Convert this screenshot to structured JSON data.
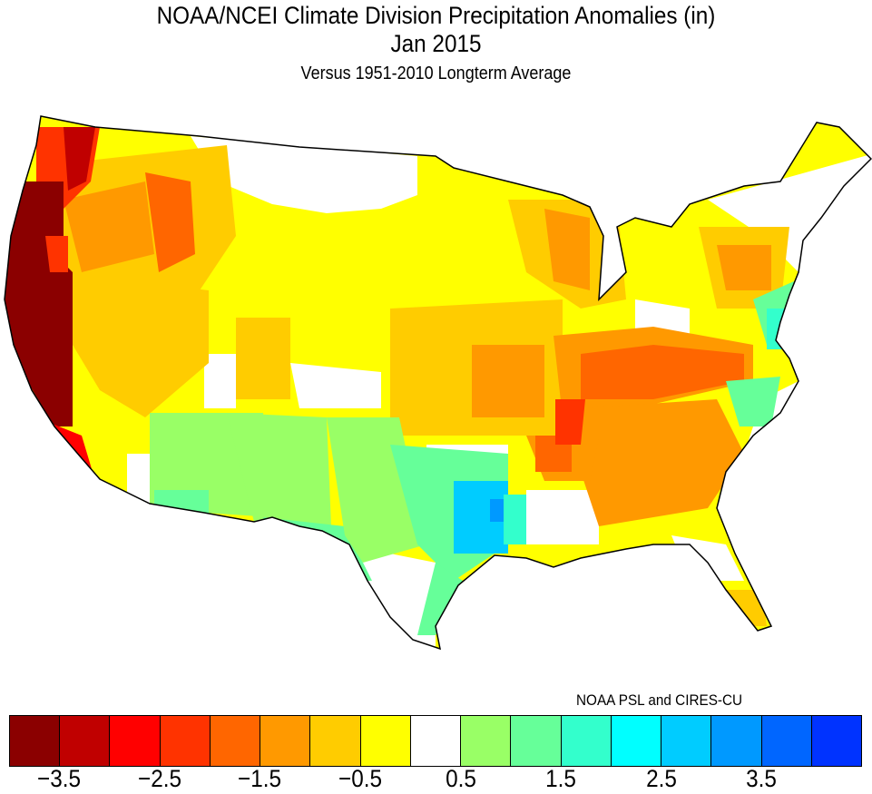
{
  "title": "NOAA/NCEI Climate Division Precipitation Anomalies (in)",
  "period": "Jan 2015",
  "subtitle": "Versus 1951-2010 Longterm Average",
  "credit": "NOAA PSL and CIRES-CU",
  "legend": {
    "colors": [
      "#8b0000",
      "#c00000",
      "#ff0000",
      "#ff3300",
      "#ff6600",
      "#ff9900",
      "#ffcc00",
      "#ffff00",
      "#ffffff",
      "#99ff66",
      "#66ff99",
      "#33ffcc",
      "#00ffff",
      "#00ccff",
      "#0099ff",
      "#0066ff",
      "#0033ff"
    ],
    "tick_labels": [
      "−3.5",
      "−2.5",
      "−1.5",
      "−0.5",
      "0.5",
      "1.5",
      "2.5",
      "3.5"
    ],
    "tick_boundaries": [
      1,
      3,
      5,
      7,
      9,
      11,
      13,
      15
    ]
  }
}
